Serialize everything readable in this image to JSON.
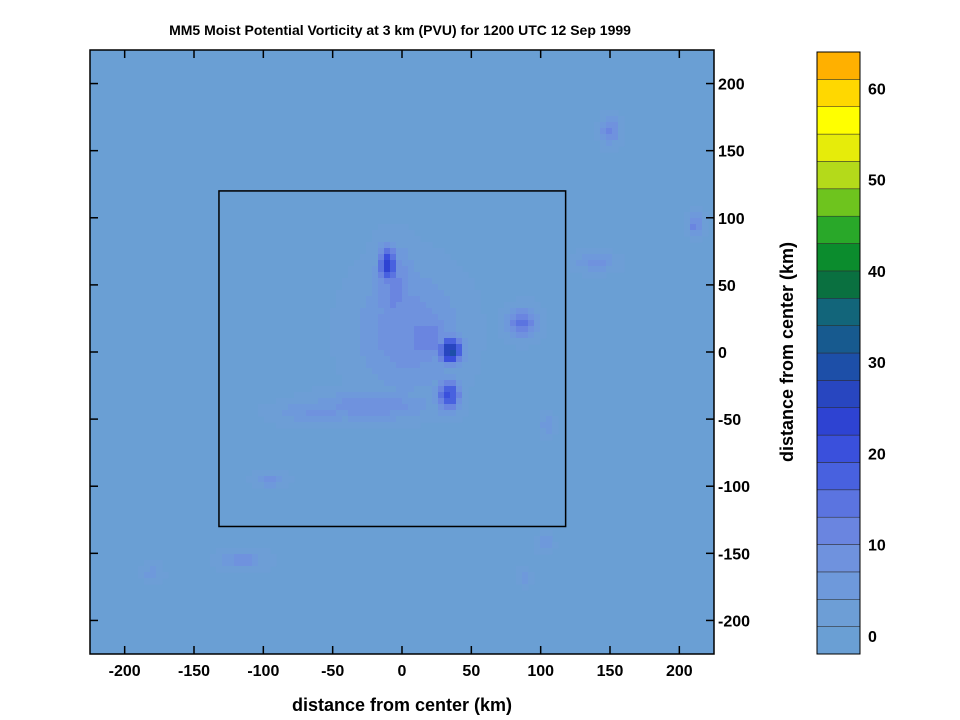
{
  "chart_data": {
    "type": "heatmap",
    "title": "MM5 Moist Potential Vorticity at 3 km (PVU) for 1200 UTC 12 Sep 1999",
    "xlabel": "distance from center (km)",
    "ylabel": "distance from center (km)",
    "xlim": [
      -225,
      225
    ],
    "ylim": [
      -225,
      225
    ],
    "x_ticks": [
      -200,
      -150,
      -100,
      -50,
      0,
      50,
      100,
      150,
      200
    ],
    "y_ticks": [
      -200,
      -150,
      -100,
      -50,
      0,
      50,
      100,
      150,
      200
    ],
    "inner_box": {
      "x": [
        -132,
        118
      ],
      "y": [
        -130,
        120
      ]
    },
    "colorbar": {
      "min": -2,
      "max": 64,
      "step": 3,
      "ticks": [
        0,
        10,
        20,
        30,
        40,
        50,
        60
      ],
      "colors": [
        "#6a9fd4",
        "#6d9ed6",
        "#6e99db",
        "#6f92de",
        "#6a85e0",
        "#5b74e0",
        "#4861df",
        "#3a50dc",
        "#2e43d2",
        "#2846c0",
        "#1d4fa8",
        "#175a8f",
        "#12657a",
        "#0a7040",
        "#0b8c2d",
        "#29a829",
        "#6ec41e",
        "#b4da1a",
        "#e6ec0a",
        "#ffff00",
        "#ffd800",
        "#ffb000",
        "#ff8c00",
        "#ff6a00",
        "#ff4a00",
        "#ff2a00",
        "#ff0000",
        "#e00000",
        "#c40000",
        "#a80000",
        "#8c0000",
        "#6a0000",
        "#4a0000",
        "#2a0000"
      ]
    },
    "background_value": 0,
    "features": [
      {
        "x": 4,
        "y": 15,
        "value": 10,
        "sx": 26,
        "sy": 32
      },
      {
        "x": -5,
        "y": 45,
        "value": 11,
        "sx": 12,
        "sy": 24
      },
      {
        "x": -10,
        "y": 65,
        "value": 24,
        "sx": 5,
        "sy": 10
      },
      {
        "x": 18,
        "y": 10,
        "value": 13,
        "sx": 14,
        "sy": 14
      },
      {
        "x": 35,
        "y": 1,
        "value": 31,
        "sx": 6,
        "sy": 7
      },
      {
        "x": 34,
        "y": -32,
        "value": 21,
        "sx": 6,
        "sy": 9
      },
      {
        "x": -22,
        "y": -40,
        "value": 10,
        "sx": 30,
        "sy": 8
      },
      {
        "x": -60,
        "y": -45,
        "value": 8,
        "sx": 22,
        "sy": 6
      },
      {
        "x": 87,
        "y": 22,
        "value": 15,
        "sx": 8,
        "sy": 8
      },
      {
        "x": 140,
        "y": 67,
        "value": 9,
        "sx": 10,
        "sy": 5
      },
      {
        "x": 150,
        "y": 165,
        "value": 12,
        "sx": 5,
        "sy": 7
      },
      {
        "x": 212,
        "y": 95,
        "value": 12,
        "sx": 4,
        "sy": 7
      },
      {
        "x": -95,
        "y": -95,
        "value": 8,
        "sx": 8,
        "sy": 4
      },
      {
        "x": -115,
        "y": -155,
        "value": 9,
        "sx": 11,
        "sy": 5
      },
      {
        "x": 103,
        "y": -143,
        "value": 7,
        "sx": 4,
        "sy": 5
      },
      {
        "x": -180,
        "y": -165,
        "value": 6,
        "sx": 5,
        "sy": 5
      },
      {
        "x": 88,
        "y": -168,
        "value": 6,
        "sx": 4,
        "sy": 4
      },
      {
        "x": 105,
        "y": -55,
        "value": 6,
        "sx": 4,
        "sy": 6
      }
    ]
  }
}
